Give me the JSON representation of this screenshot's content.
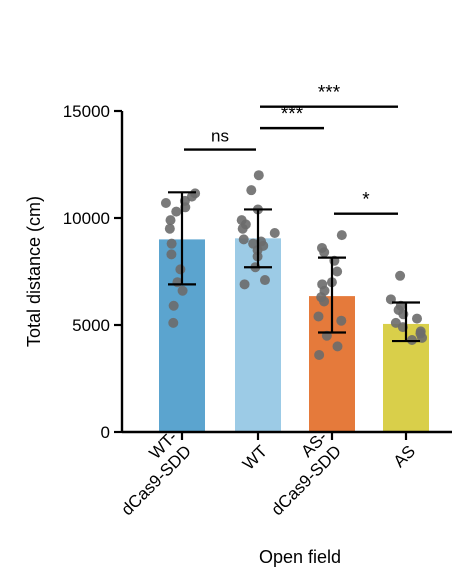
{
  "chart_data": {
    "type": "bar",
    "title": "",
    "xlabel": "Open field",
    "ylabel": "Total distance (cm)",
    "ylim": [
      0,
      15000
    ],
    "yticks": [
      0,
      5000,
      10000,
      15000
    ],
    "ytick_labels": [
      "0",
      "5000",
      "10000",
      "15000"
    ],
    "grid": false,
    "categories": [
      "WT-dCas9-SDD",
      "WT",
      "AS-dCas9-SDD",
      "AS"
    ],
    "category_label_lines": [
      [
        "WT-",
        "dCas9-SDD"
      ],
      [
        "WT"
      ],
      [
        "AS-",
        "dCas9-SDD"
      ],
      [
        "AS"
      ]
    ],
    "bar_colors": [
      "#5ba4cf",
      "#9ccbe6",
      "#e57a3b",
      "#d9cf4a"
    ],
    "point_color": "#6b6b6b",
    "values": [
      9000,
      9050,
      6350,
      5050
    ],
    "error": [
      {
        "low": 6900,
        "high": 11200
      },
      {
        "low": 7700,
        "high": 10400
      },
      {
        "low": 4650,
        "high": 8150
      },
      {
        "low": 4250,
        "high": 6050
      }
    ],
    "points": [
      [
        11150,
        11000,
        10800,
        10700,
        10500,
        10300,
        9900,
        9500,
        8800,
        8300,
        7600,
        7000,
        6600,
        5900,
        5100
      ],
      [
        12000,
        11300,
        10400,
        9900,
        9700,
        9500,
        9300,
        9000,
        8900,
        8800,
        8700,
        8500,
        8200,
        7700,
        7100,
        6900
      ],
      [
        9200,
        8600,
        8400,
        8000,
        7500,
        7000,
        6900,
        6600,
        6300,
        6100,
        5400,
        5200,
        4500,
        4000,
        3600
      ],
      [
        7300,
        6200,
        5900,
        5700,
        5500,
        5300,
        5100,
        4900,
        4700,
        4600,
        4400,
        4300
      ]
    ],
    "annotations": [
      {
        "from": 0,
        "to": 1,
        "y": 13200,
        "label": "ns"
      },
      {
        "from": 1,
        "to": 2,
        "y": 14200,
        "label": "***"
      },
      {
        "from": 1,
        "to": 3,
        "y": 15200,
        "label": "***"
      },
      {
        "from": 2,
        "to": 3,
        "y": 10200,
        "label": "*"
      }
    ]
  }
}
